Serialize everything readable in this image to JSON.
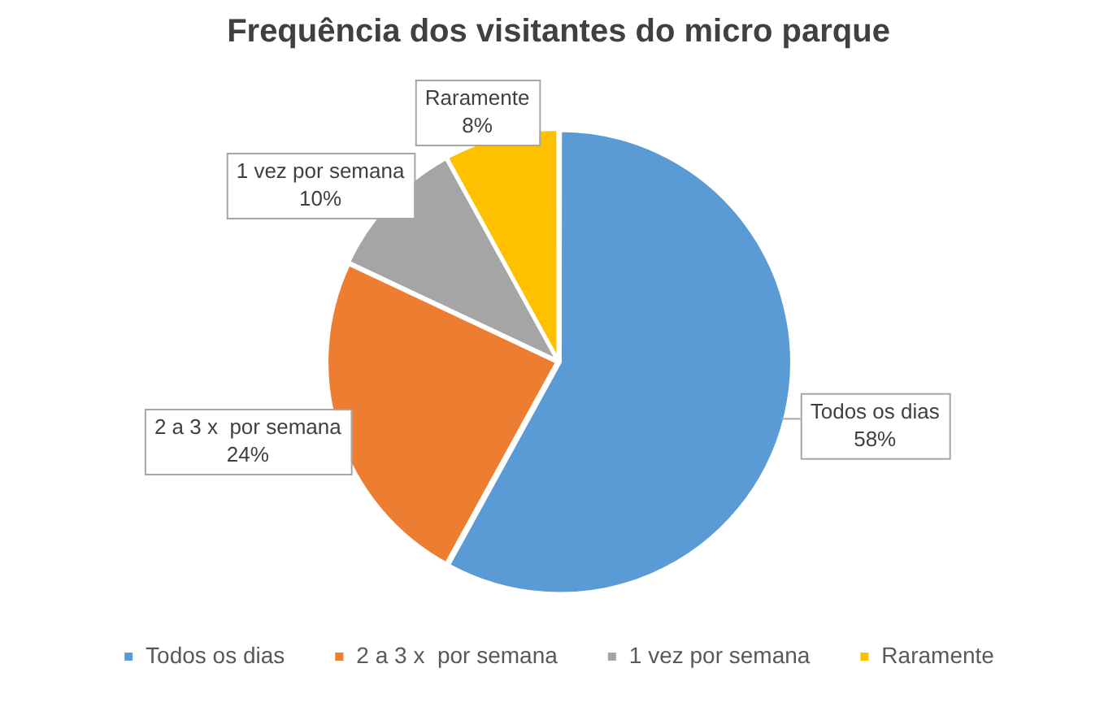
{
  "chart_data": {
    "type": "pie",
    "title": "Frequência dos visitantes do micro parque",
    "categories": [
      "Todos os dias",
      "2 a 3 x  por semana",
      "1 vez por semana",
      "Raramente"
    ],
    "values": [
      58,
      24,
      10,
      8
    ],
    "colors": [
      "#5b9bd5",
      "#ed7d31",
      "#a5a5a5",
      "#ffc000"
    ],
    "value_labels": [
      "58%",
      "24%",
      "10%",
      "8%"
    ],
    "legend": "bottom"
  }
}
